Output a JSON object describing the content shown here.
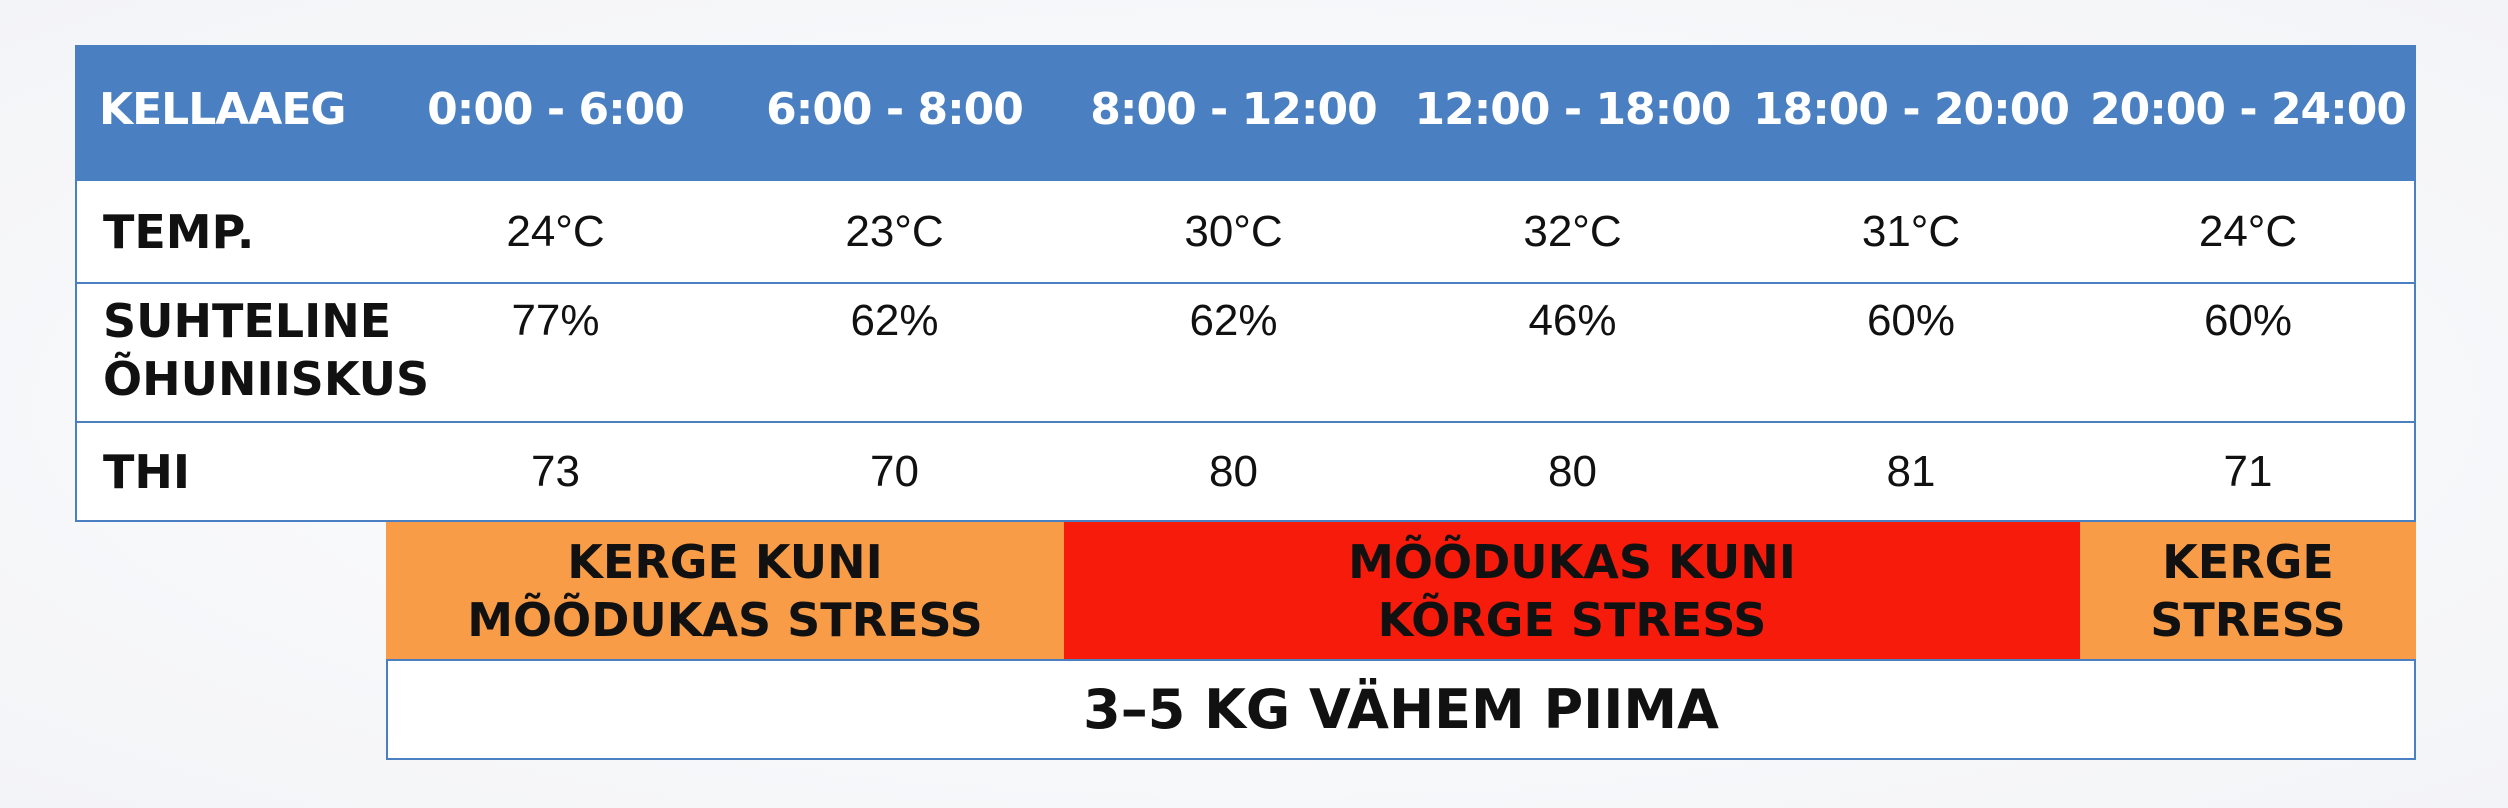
{
  "table": {
    "header": [
      "KELLAAEG",
      "0:00 - 6:00",
      "6:00 - 8:00",
      "8:00 - 12:00",
      "12:00 - 18:00",
      "18:00 - 20:00",
      "20:00 - 24:00"
    ],
    "rows": [
      [
        "TEMP.",
        "24°C",
        "23°C",
        "30°C",
        "32°C",
        "31°C",
        "24°C"
      ],
      [
        "SUHTELINE\nÕHUNIISKUS",
        "77%",
        "62%",
        "62%",
        "46%",
        "60%",
        "60%"
      ],
      [
        "THI",
        "73",
        "70",
        "80",
        "80",
        "81",
        "71"
      ]
    ],
    "stress": [
      "KERGE KUNI\nMÕÕDUKAS STRESS",
      "MÕÕDUKAS KUNI\nKÕRGE STRESS",
      "KERGE\nSTRESS"
    ],
    "footer": "3–5 KG VÄHEM PIIMA"
  }
}
